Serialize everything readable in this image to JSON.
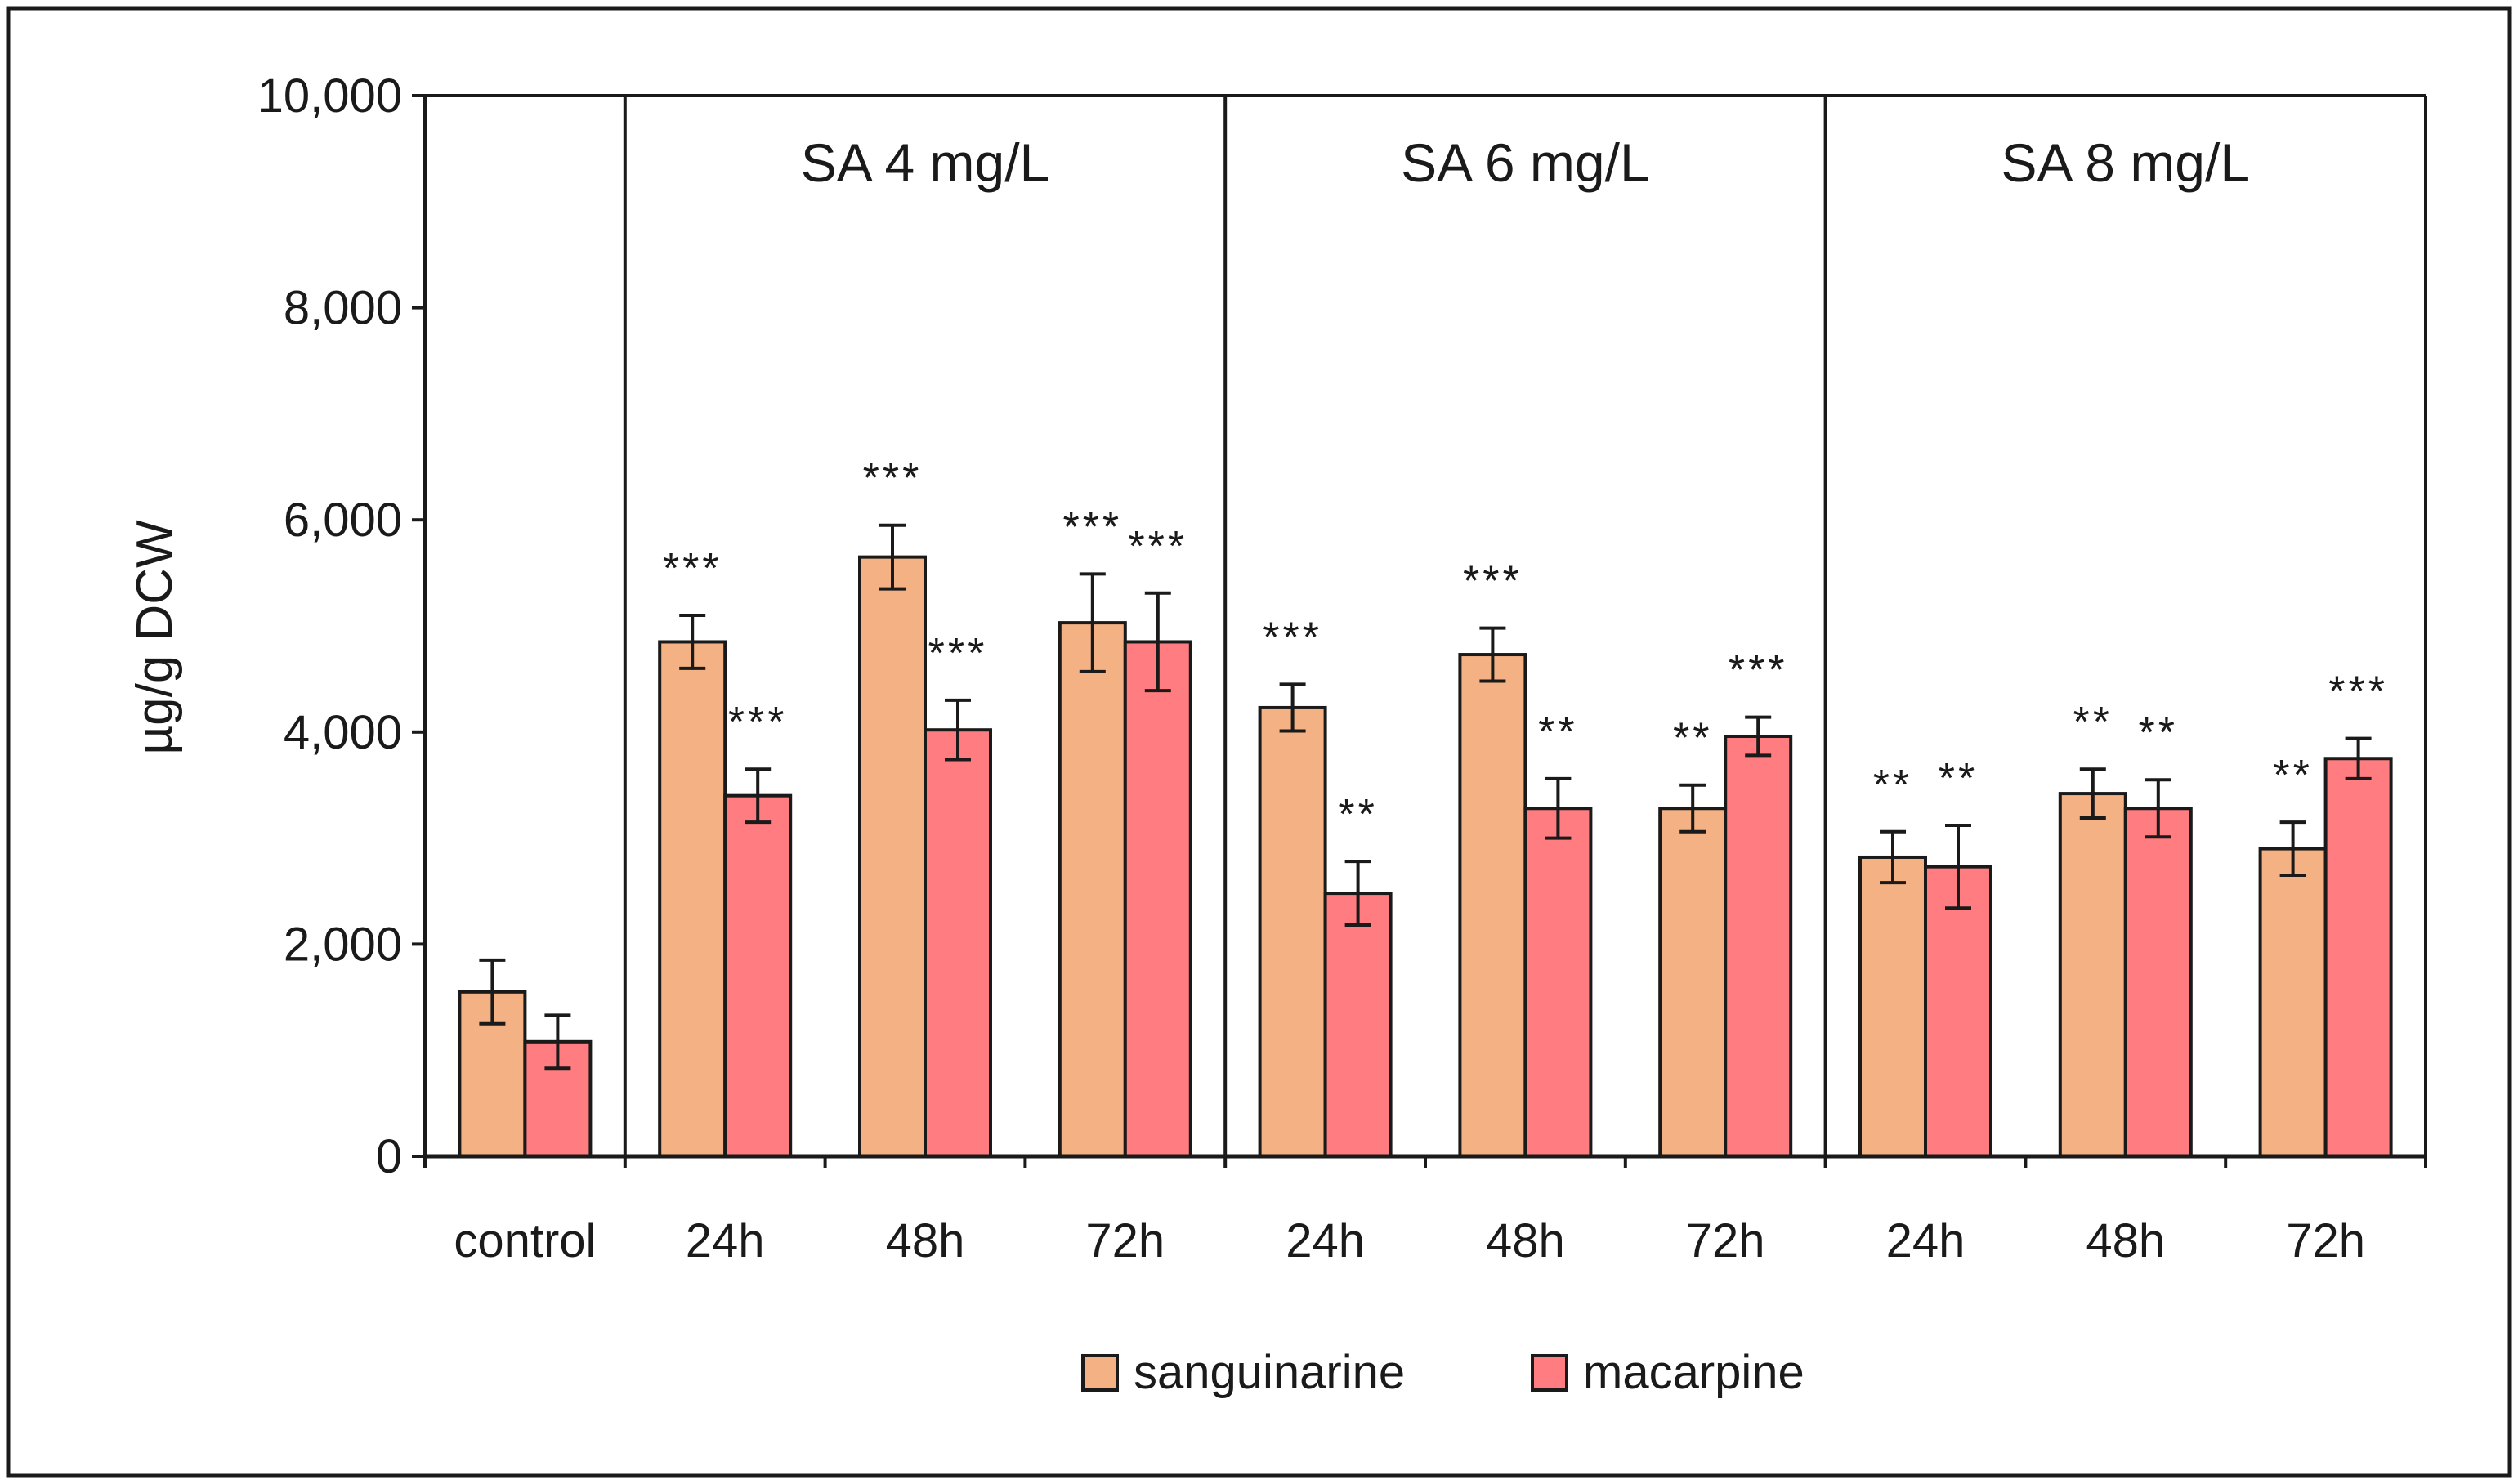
{
  "chart_data": {
    "type": "bar",
    "ylabel": "µg/g DCW",
    "ylim": [
      0,
      10000
    ],
    "yticks": [
      0,
      2000,
      4000,
      6000,
      8000,
      10000
    ],
    "ytick_labels": [
      "0",
      "2,000",
      "4,000",
      "6,000",
      "8,000",
      "10,000"
    ],
    "categories": [
      "control",
      "24h",
      "48h",
      "72h",
      "24h",
      "48h",
      "72h",
      "24h",
      "48h",
      "72h"
    ],
    "groups": [
      {
        "label": "",
        "start": 0,
        "end": 0
      },
      {
        "label": "SA 4 mg/L",
        "start": 1,
        "end": 3
      },
      {
        "label": "SA 6 mg/L",
        "start": 4,
        "end": 6
      },
      {
        "label": "SA 8 mg/L",
        "start": 7,
        "end": 9
      }
    ],
    "series": [
      {
        "name": "sanguinarine",
        "color": "#F4B183",
        "values": [
          1550,
          4850,
          5650,
          5030,
          4230,
          4730,
          3280,
          2820,
          3420,
          2900
        ],
        "errors": [
          300,
          250,
          300,
          460,
          220,
          250,
          220,
          240,
          230,
          250
        ],
        "significance": [
          "",
          "***",
          "***",
          "***",
          "***",
          "***",
          "**",
          "**",
          "**",
          "**"
        ]
      },
      {
        "name": "macarpine",
        "color": "#FF7C80",
        "values": [
          1080,
          3400,
          4020,
          4850,
          2480,
          3280,
          3960,
          2730,
          3280,
          3750
        ],
        "errors": [
          250,
          250,
          280,
          460,
          300,
          280,
          180,
          390,
          270,
          190
        ],
        "significance": [
          "",
          "***",
          "***",
          "***",
          "**",
          "**",
          "***",
          "**",
          "**",
          "***"
        ]
      }
    ]
  }
}
